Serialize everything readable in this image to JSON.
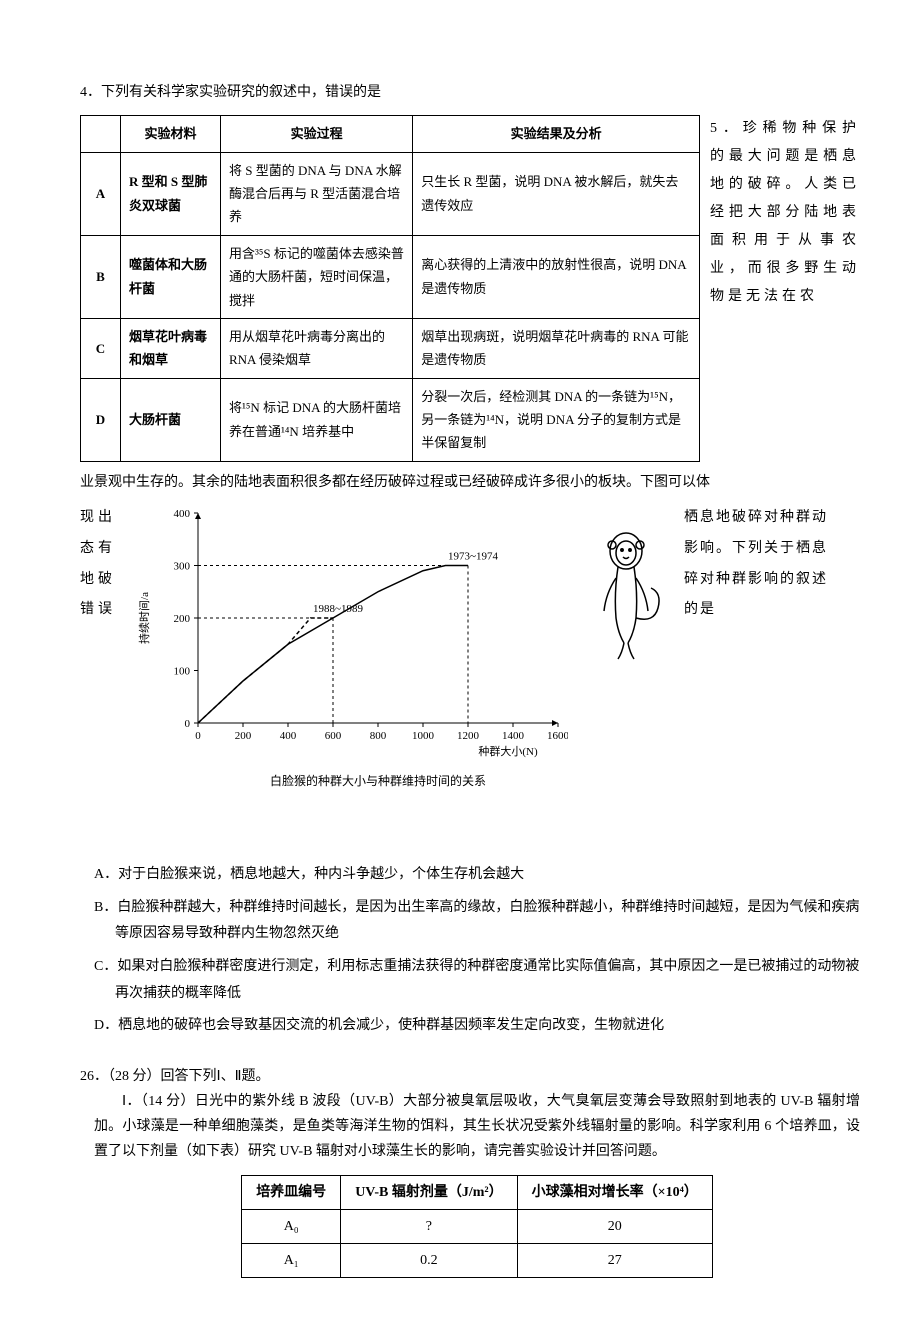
{
  "q4": {
    "prompt": "4．下列有关科学家实验研究的叙述中，错误的是",
    "table": {
      "headers": [
        "",
        "实验材料",
        "实验过程",
        "实验结果及分析"
      ],
      "rows": [
        {
          "label": "A",
          "material": "R 型和 S 型肺炎双球菌",
          "process": "将 S 型菌的 DNA 与 DNA 水解酶混合后再与 R 型活菌混合培养",
          "result": "只生长 R 型菌，说明 DNA 被水解后，就失去遗传效应"
        },
        {
          "label": "B",
          "material": "噬菌体和大肠杆菌",
          "process": "用含³⁵S 标记的噬菌体去感染普通的大肠杆菌，短时间保温，搅拌",
          "result": "离心获得的上清液中的放射性很高，说明 DNA 是遗传物质"
        },
        {
          "label": "C",
          "material": "烟草花叶病毒和烟草",
          "process": "用从烟草花叶病毒分离出的 RNA 侵染烟草",
          "result": "烟草出现病斑，说明烟草花叶病毒的 RNA 可能是遗传物质"
        },
        {
          "label": "D",
          "material": "大肠杆菌",
          "process": "将¹⁵N 标记 DNA 的大肠杆菌培养在普通¹⁴N 培养基中",
          "result": "分裂一次后，经检测其 DNA 的一条链为¹⁵N，另一条链为¹⁴N，说明 DNA 分子的复制方式是半保留复制"
        }
      ]
    }
  },
  "q5": {
    "side": "5．珍稀物种保护的最大问题是栖息地的破碎。人类已经把大部分陆地表面积用于从事农业，而很多野生动物是无法在农",
    "flow": "业景观中生存的。其余的陆地表面积很多都在经历破碎过程或已经破碎成许多很小的板块。下图可以体",
    "left_lines": [
      "现出",
      "态有",
      "地破",
      "错误"
    ],
    "right_lines": [
      "栖息地破碎对种群动",
      "影响。下列关于栖息",
      "碎对种群影响的叙述",
      "的是"
    ]
  },
  "chart": {
    "type": "line",
    "background_color": "#ffffff",
    "axis_color": "#000000",
    "line_color": "#000000",
    "x_label": "种群大小(N)",
    "y_label": "持续时间/a",
    "title_bottom": "白脸猴的种群大小与种群维持时间的关系",
    "xlim": [
      0,
      1600
    ],
    "xtick_step": 200,
    "ylim": [
      0,
      400
    ],
    "ytick_step": 100,
    "series": [
      {
        "label": "1988~1989",
        "points": [
          [
            0,
            0
          ],
          [
            200,
            80
          ],
          [
            400,
            150
          ],
          [
            500,
            200
          ],
          [
            600,
            200
          ]
        ],
        "dash": "4 3"
      },
      {
        "label": "1973~1974",
        "points": [
          [
            0,
            0
          ],
          [
            200,
            80
          ],
          [
            400,
            150
          ],
          [
            600,
            200
          ],
          [
            800,
            250
          ],
          [
            1000,
            290
          ],
          [
            1100,
            300
          ],
          [
            1200,
            300
          ]
        ],
        "dash": "none"
      }
    ],
    "label_fontsize": 11,
    "tick_fontsize": 11
  },
  "options": {
    "A": "A．对于白脸猴来说，栖息地越大，种内斗争越少，个体生存机会越大",
    "B": "B．白脸猴种群越大，种群维持时间越长，是因为出生率高的缘故，白脸猴种群越小，种群维持时间越短，是因为气候和疾病等原因容易导致种群内生物忽然灭绝",
    "C": "C．如果对白脸猴种群密度进行测定，利用标志重捕法获得的种群密度通常比实际值偏高，其中原因之一是已被捕过的动物被再次捕获的概率降低",
    "D": "D．栖息地的破碎也会导致基因交流的机会减少，使种群基因频率发生定向改变，生物就进化"
  },
  "q26": {
    "header": "26．（28 分）回答下列Ⅰ、Ⅱ题。",
    "part1_label": "Ⅰ．（14 分）",
    "part1_text": "日光中的紫外线 B 波段（UV-B）大部分被臭氧层吸收，大气臭氧层变薄会导致照射到地表的 UV-B 辐射增加。小球藻是一种单细胞藻类，是鱼类等海洋生物的饵料，其生长状况受紫外线辐射量的影响。科学家利用 6 个培养皿，设置了以下剂量（如下表）研究 UV-B 辐射对小球藻生长的影响，请完善实验设计并回答问题。",
    "uvb_table": {
      "headers": [
        "培养皿编号",
        "UV-B 辐射剂量（J/m²）",
        "小球藻相对增长率（×10⁴）"
      ],
      "rows": [
        {
          "id": "A₀",
          "dose": "?",
          "rate": "20"
        },
        {
          "id": "A₁",
          "dose": "0.2",
          "rate": "27"
        }
      ]
    }
  }
}
